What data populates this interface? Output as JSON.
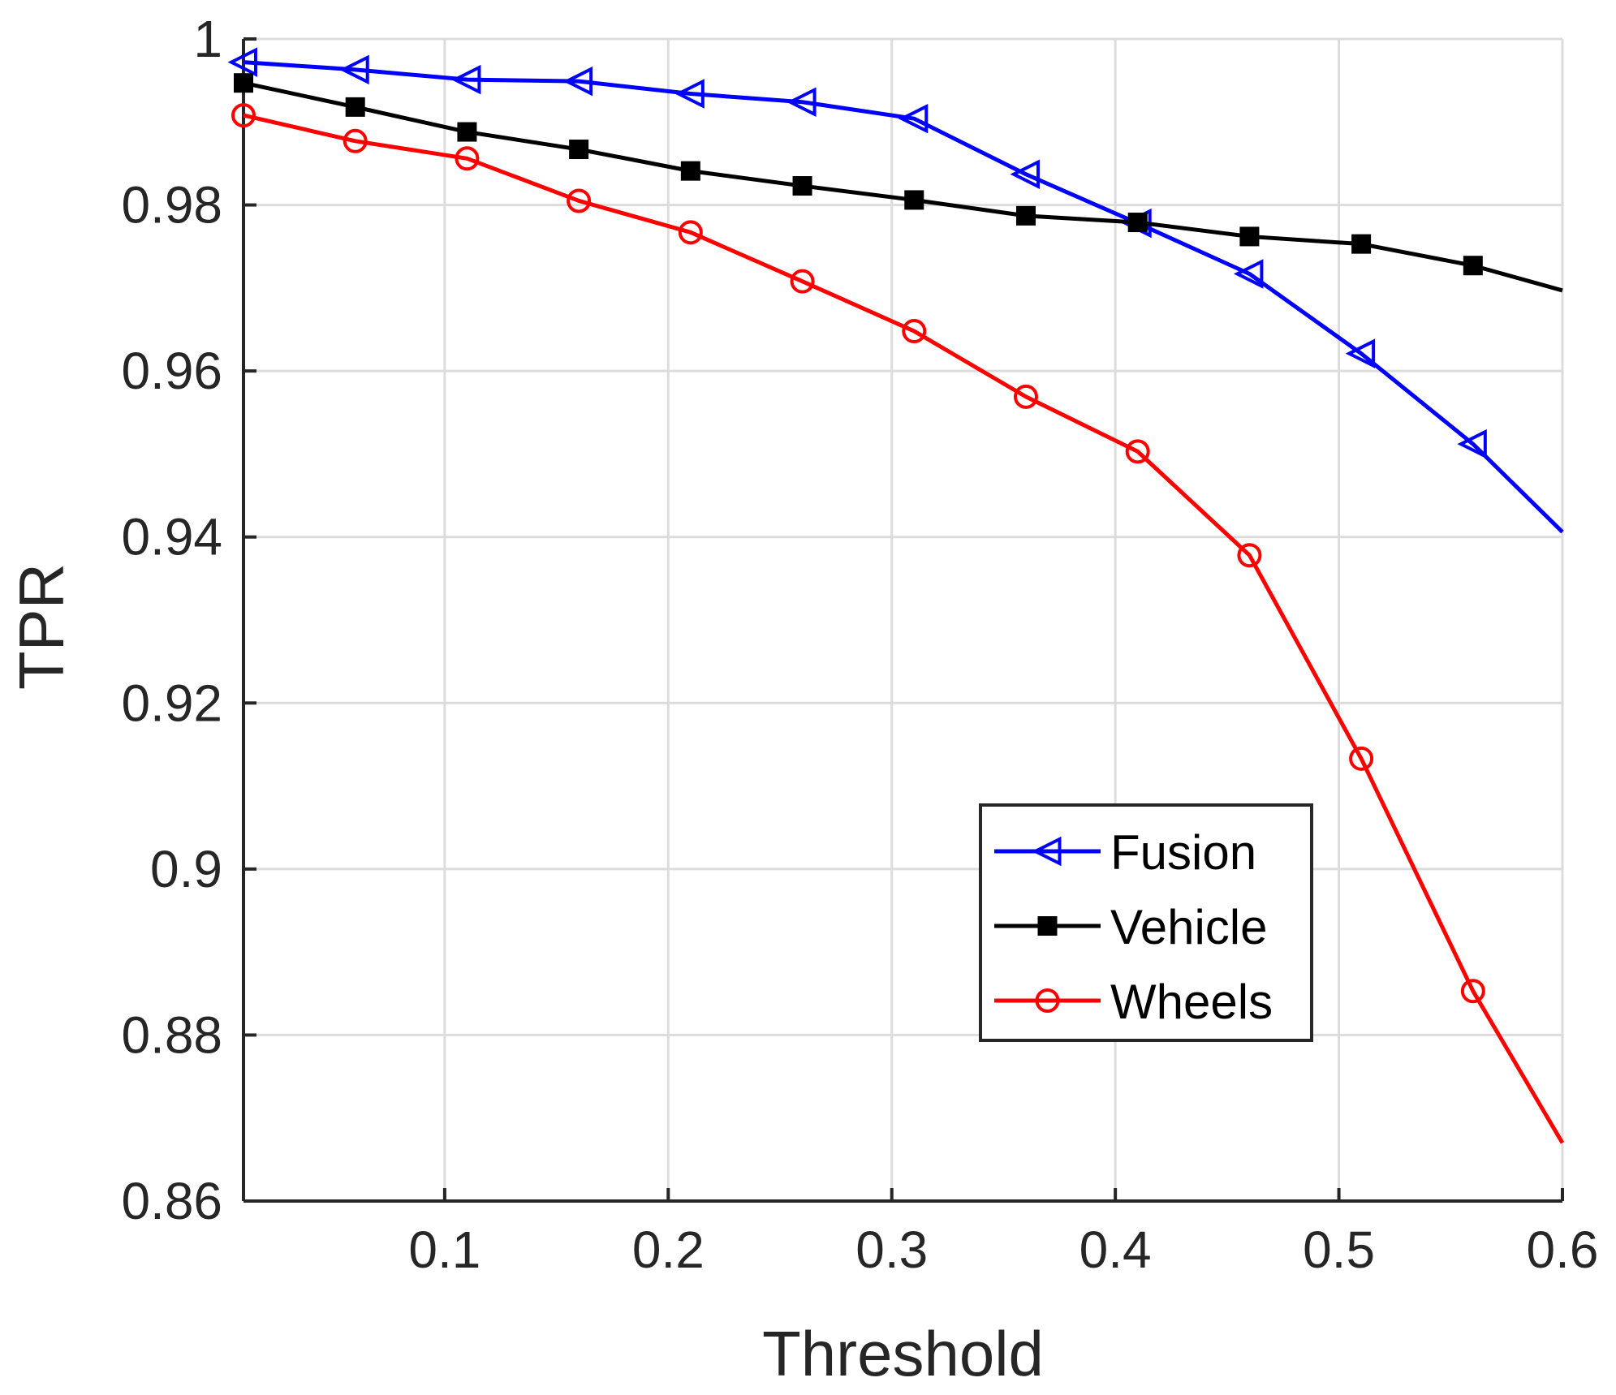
{
  "chart_data": {
    "type": "line",
    "title": "",
    "xlabel": "Threshold",
    "ylabel": "TPR",
    "xlim": [
      0.01,
      0.6
    ],
    "ylim": [
      0.86,
      1.0
    ],
    "xticks": [
      0.1,
      0.2,
      0.3,
      0.4,
      0.5,
      0.6
    ],
    "xtick_labels": [
      "0.1",
      "0.2",
      "0.3",
      "0.4",
      "0.5",
      "0.6"
    ],
    "yticks": [
      0.86,
      0.88,
      0.9,
      0.92,
      0.94,
      0.96,
      0.98,
      1.0
    ],
    "ytick_labels": [
      "0.86",
      "0.88",
      "0.9",
      "0.92",
      "0.94",
      "0.96",
      "0.98",
      "1"
    ],
    "grid": true,
    "legend_position": "lower-right",
    "x": [
      0.01,
      0.06,
      0.11,
      0.16,
      0.21,
      0.26,
      0.31,
      0.36,
      0.41,
      0.46,
      0.51,
      0.56,
      0.6
    ],
    "series": [
      {
        "name": "Fusion",
        "color": "#0000ff",
        "marker": "triangle-left",
        "values": [
          0.9972,
          0.9963,
          0.9951,
          0.9949,
          0.9934,
          0.9924,
          0.9904,
          0.9837,
          0.9778,
          0.9717,
          0.9621,
          0.9512,
          0.9406
        ]
      },
      {
        "name": "Vehicle",
        "color": "#000000",
        "marker": "square",
        "values": [
          0.9947,
          0.9918,
          0.9888,
          0.9867,
          0.9841,
          0.9823,
          0.9806,
          0.9787,
          0.9779,
          0.9762,
          0.9753,
          0.9727,
          0.9697
        ]
      },
      {
        "name": "Wheels",
        "color": "#ff0000",
        "marker": "circle",
        "values": [
          0.9908,
          0.9877,
          0.9856,
          0.9805,
          0.9767,
          0.9708,
          0.9648,
          0.9569,
          0.9503,
          0.9378,
          0.9133,
          0.8853,
          0.867
        ]
      }
    ]
  }
}
